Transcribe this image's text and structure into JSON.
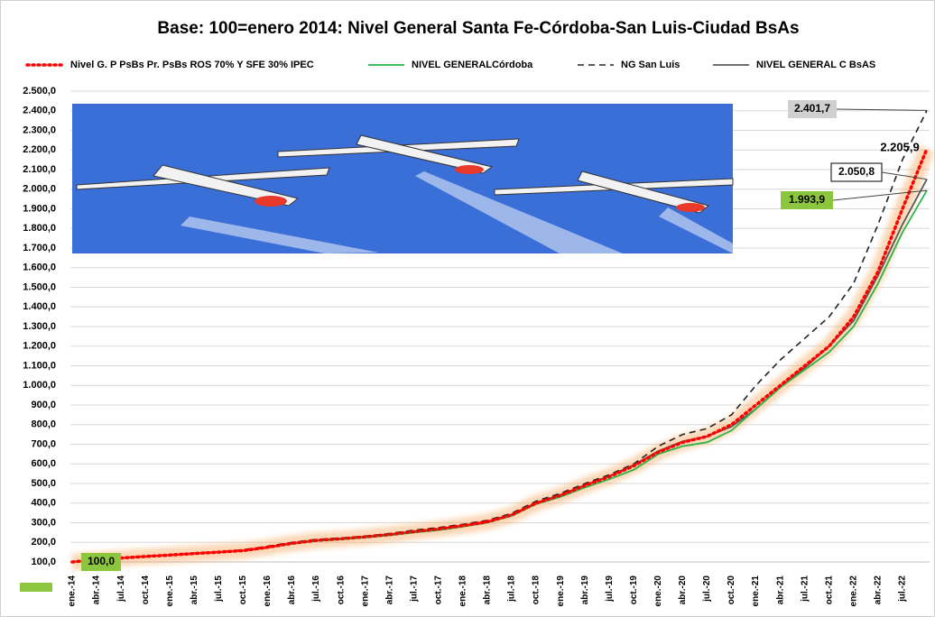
{
  "chart_data": {
    "type": "line",
    "title": "Base: 100=enero 2014: Nivel General Santa Fe-Córdoba-San Luis-Ciudad BsAs",
    "categories": [
      "ene.-14",
      "abr.-14",
      "jul.-14",
      "oct.-14",
      "ene.-15",
      "abr.-15",
      "jul.-15",
      "oct.-15",
      "ene.-16",
      "abr.-16",
      "jul.-16",
      "oct.-16",
      "ene.-17",
      "abr.-17",
      "jul.-17",
      "oct.-17",
      "ene.-18",
      "abr.-18",
      "jul.-18",
      "oct.-18",
      "ene.-19",
      "abr.-19",
      "jul.-19",
      "oct.-19",
      "ene.-20",
      "abr.-20",
      "jul.-20",
      "oct.-20",
      "ene.-21",
      "abr.-21",
      "jul.-21",
      "oct.-21",
      "ene.-22",
      "abr.-22",
      "jul.-22",
      null
    ],
    "series": [
      {
        "name": "Nivel G. P PsBs Pr. PsBs ROS 70% Y SFE 30% IPEC",
        "color": "#ff0000",
        "dash": "dotted",
        "glow": "#f8a860",
        "values": [
          100,
          112,
          120,
          128,
          135,
          143,
          150,
          158,
          175,
          195,
          210,
          218,
          228,
          240,
          255,
          268,
          285,
          305,
          340,
          400,
          440,
          490,
          535,
          590,
          660,
          710,
          740,
          800,
          900,
          1000,
          1100,
          1200,
          1350,
          1580,
          1900,
          2205.9
        ],
        "value_labels": [
          null,
          null,
          null,
          null,
          null,
          null,
          null,
          null,
          null,
          null,
          null,
          null,
          null,
          null,
          null,
          null,
          null,
          null,
          null,
          null,
          null,
          null,
          null,
          null,
          null,
          null,
          null,
          null,
          null,
          null,
          null,
          null,
          null,
          null,
          null,
          "2.205,9"
        ]
      },
      {
        "name": "NIVEL GENERALCórdoba",
        "color": "#2db34a",
        "dash": "solid",
        "values": [
          100,
          111,
          119,
          127,
          134,
          142,
          149,
          157,
          172,
          192,
          207,
          215,
          225,
          236,
          250,
          262,
          280,
          300,
          335,
          395,
          432,
          480,
          522,
          570,
          650,
          690,
          710,
          770,
          880,
          990,
          1080,
          1170,
          1300,
          1520,
          1780,
          1993.9
        ],
        "value_labels": [
          "100,0",
          null,
          null,
          null,
          null,
          null,
          null,
          null,
          null,
          null,
          null,
          null,
          null,
          null,
          null,
          null,
          null,
          null,
          null,
          null,
          null,
          null,
          null,
          null,
          null,
          null,
          null,
          null,
          null,
          null,
          null,
          null,
          null,
          null,
          null,
          "1.993,9"
        ]
      },
      {
        "name": "NG San Luis",
        "color": "#222222",
        "dash": "dashed",
        "values": [
          100,
          113,
          121,
          130,
          137,
          145,
          152,
          162,
          180,
          200,
          215,
          222,
          232,
          245,
          262,
          275,
          292,
          312,
          348,
          410,
          450,
          500,
          545,
          600,
          690,
          750,
          780,
          850,
          1000,
          1130,
          1240,
          1350,
          1520,
          1820,
          2150,
          2401.7
        ],
        "value_labels": [
          null,
          null,
          null,
          null,
          null,
          null,
          null,
          null,
          null,
          null,
          null,
          null,
          null,
          null,
          null,
          null,
          null,
          null,
          null,
          null,
          null,
          null,
          null,
          null,
          null,
          null,
          null,
          null,
          null,
          null,
          null,
          null,
          null,
          null,
          null,
          "2.401,7"
        ]
      },
      {
        "name": "NIVEL GENERAL C BsAS",
        "color": "#595959",
        "dash": "solid",
        "values": [
          100,
          112,
          120,
          128,
          135,
          143,
          150,
          158,
          176,
          196,
          211,
          219,
          229,
          241,
          256,
          269,
          286,
          306,
          342,
          402,
          442,
          492,
          538,
          595,
          665,
          715,
          740,
          790,
          880,
          990,
          1090,
          1200,
          1330,
          1560,
          1820,
          2050.8
        ],
        "value_labels": [
          null,
          null,
          null,
          null,
          null,
          null,
          null,
          null,
          null,
          null,
          null,
          null,
          null,
          null,
          null,
          null,
          null,
          null,
          null,
          null,
          null,
          null,
          null,
          null,
          null,
          null,
          null,
          null,
          null,
          null,
          null,
          null,
          null,
          null,
          null,
          "2.050,8"
        ]
      }
    ],
    "ylim": [
      100,
      2500
    ],
    "yticks": [
      {
        "value": 100,
        "label": "100,0"
      },
      {
        "value": 200,
        "label": "200,0"
      },
      {
        "value": 300,
        "label": "300,0"
      },
      {
        "value": 400,
        "label": "400,0"
      },
      {
        "value": 500,
        "label": "500,0"
      },
      {
        "value": 600,
        "label": "600,0"
      },
      {
        "value": 700,
        "label": "700,0"
      },
      {
        "value": 800,
        "label": "800,0"
      },
      {
        "value": 900,
        "label": "900,0"
      },
      {
        "value": 1000,
        "label": "1.000,0"
      },
      {
        "value": 1100,
        "label": "1.100,0"
      },
      {
        "value": 1200,
        "label": "1.200,0"
      },
      {
        "value": 1300,
        "label": "1.300,0"
      },
      {
        "value": 1400,
        "label": "1.400,0"
      },
      {
        "value": 1500,
        "label": "1.500,0"
      },
      {
        "value": 1600,
        "label": "1.600,0"
      },
      {
        "value": 1700,
        "label": "1.700,0"
      },
      {
        "value": 1800,
        "label": "1.800,0"
      },
      {
        "value": 1900,
        "label": "1.900,0"
      },
      {
        "value": 2000,
        "label": "2.000,0"
      },
      {
        "value": 2100,
        "label": "2.100,0"
      },
      {
        "value": 2200,
        "label": "2.200,0"
      },
      {
        "value": 2300,
        "label": "2.300,0"
      },
      {
        "value": 2400,
        "label": "2.400,0"
      },
      {
        "value": 2500,
        "label": "2.500,0"
      }
    ],
    "grid": true,
    "legend": "top"
  }
}
